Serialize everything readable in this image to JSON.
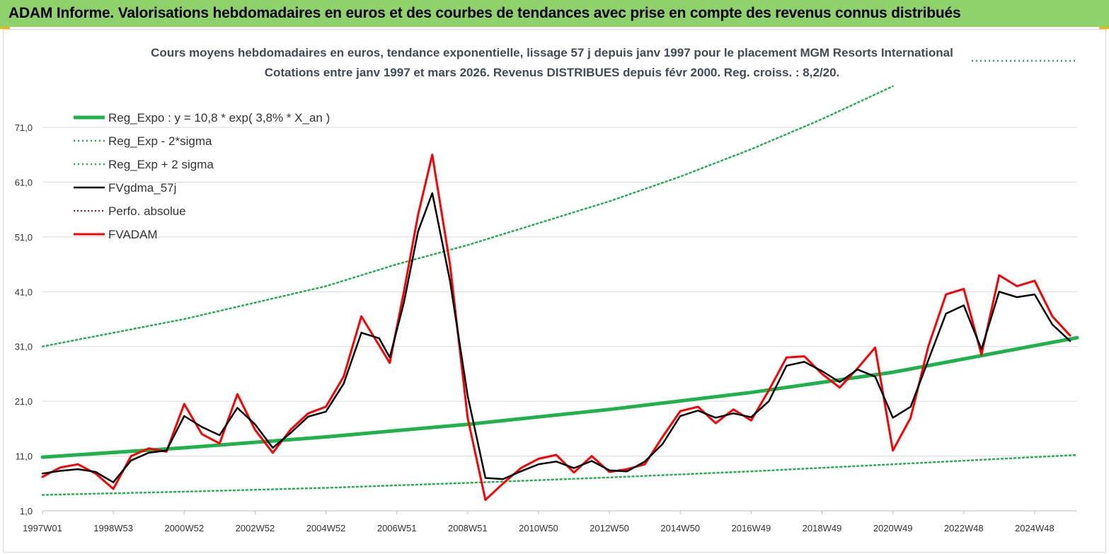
{
  "header": {
    "title": "ADAM Informe. Valorisations hebdomadaires en euros et des courbes de tendances avec prise en compte des revenus connus distribués"
  },
  "chart_data": {
    "type": "line",
    "subtitle_line1": "Cours moyens hebdomadaires en euros, tendance exponentielle, lissage 57 j depuis janv 1997  pour le placement MGM Resorts International",
    "subtitle_line2": "Cotations entre janv 1997 et mars 2026. Revenus DISTRIBUES depuis févr 2000. Reg. croiss. : 8,2/20.",
    "x_range": [
      1997.0,
      2026.2
    ],
    "ylim": [
      1,
      79
    ],
    "y_ticks": [
      "1,0",
      "11,0",
      "21,0",
      "31,0",
      "41,0",
      "51,0",
      "61,0",
      "71,0"
    ],
    "y_tick_values": [
      1,
      11,
      21,
      31,
      41,
      51,
      61,
      71
    ],
    "x_tick_labels": [
      "1997W01",
      "1998W53",
      "2000W52",
      "2002W52",
      "2004W52",
      "2006W51",
      "2008W51",
      "2010W50",
      "2012W50",
      "2014W50",
      "2016W49",
      "2018W49",
      "2020W49",
      "2022W48",
      "2024W48"
    ],
    "x_tick_values": [
      1997.0,
      1999.0,
      2001.0,
      2003.0,
      2005.0,
      2007.0,
      2009.0,
      2011.0,
      2013.0,
      2015.0,
      2017.0,
      2019.0,
      2021.0,
      2023.0,
      2025.0
    ],
    "grid": "horizontal",
    "legend_position": "top-left",
    "colors": {
      "reg_expo": "#1db34a",
      "sigma": "#1db34a",
      "smooth": "#000000",
      "perfo": "#c00000",
      "price": "#ff0000"
    },
    "series": [
      {
        "name": "Reg_Expo : y = 10,8 * exp( 3,8% *  X_an )",
        "style": "thick",
        "x": [
          1997.0,
          2001.0,
          2005.0,
          2009.0,
          2013.0,
          2017.0,
          2021.0,
          2026.2
        ],
        "values": [
          10.8,
          12.5,
          14.5,
          16.8,
          19.5,
          22.6,
          26.3,
          32.6
        ]
      },
      {
        "name": "Reg_Exp - 2*sigma",
        "style": "dotted",
        "x": [
          1997.0,
          2001.0,
          2005.0,
          2009.0,
          2013.0,
          2017.0,
          2021.0,
          2026.2
        ],
        "values": [
          3.9,
          4.5,
          5.2,
          6.1,
          7.1,
          8.2,
          9.5,
          11.2
        ]
      },
      {
        "name": "Reg_Exp + 2 sigma",
        "style": "dotted",
        "x": [
          1997.0,
          2001.0,
          2005.0,
          2007.0,
          2009.0,
          2013.0,
          2015.0,
          2017.0,
          2019.0,
          2021.0
        ],
        "values": [
          31.0,
          36.0,
          42.0,
          46.0,
          49.5,
          57.5,
          62.0,
          67.0,
          72.5,
          78.5
        ]
      },
      {
        "name": "FVgdma_57j",
        "style": "line",
        "x": [
          1997.0,
          1997.5,
          1998.0,
          1998.5,
          1999.0,
          1999.5,
          2000.0,
          2000.5,
          2001.0,
          2001.5,
          2002.0,
          2002.5,
          2003.0,
          2003.5,
          2004.0,
          2004.5,
          2005.0,
          2005.5,
          2006.0,
          2006.5,
          2006.8,
          2007.2,
          2007.6,
          2008.0,
          2008.5,
          2009.0,
          2009.5,
          2010.0,
          2010.5,
          2011.0,
          2011.5,
          2012.0,
          2012.5,
          2013.0,
          2013.5,
          2014.0,
          2014.5,
          2015.0,
          2015.5,
          2016.0,
          2016.5,
          2017.0,
          2017.5,
          2018.0,
          2018.5,
          2019.0,
          2019.5,
          2020.0,
          2020.5,
          2021.0,
          2021.5,
          2022.0,
          2022.5,
          2023.0,
          2023.5,
          2024.0,
          2024.5,
          2025.0,
          2025.5,
          2026.0
        ],
        "values": [
          7.8,
          8.3,
          8.6,
          8.1,
          6.2,
          10.2,
          11.6,
          12.0,
          18.3,
          16.3,
          14.8,
          19.8,
          16.8,
          12.5,
          15.2,
          18.2,
          19.1,
          24.2,
          33.5,
          32.5,
          29.0,
          39.0,
          52.0,
          59.0,
          43.0,
          22.0,
          7.0,
          6.8,
          8.2,
          9.5,
          10.0,
          8.8,
          10.1,
          8.4,
          8.2,
          10.0,
          13.2,
          18.3,
          19.3,
          18.0,
          18.8,
          18.1,
          21.0,
          27.5,
          28.2,
          26.5,
          24.5,
          26.8,
          25.5,
          18.0,
          20.0,
          28.5,
          37.0,
          38.5,
          30.5,
          41.0,
          40.0,
          40.5,
          35.0,
          32.0
        ]
      },
      {
        "name": "Perfo. absolue",
        "style": "dotted",
        "x": [],
        "values": []
      },
      {
        "name": "FVADAM",
        "style": "thick",
        "x": [
          1997.0,
          1997.5,
          1998.0,
          1998.5,
          1999.0,
          1999.5,
          2000.0,
          2000.5,
          2001.0,
          2001.5,
          2002.0,
          2002.5,
          2003.0,
          2003.5,
          2004.0,
          2004.5,
          2005.0,
          2005.5,
          2006.0,
          2006.5,
          2006.8,
          2007.2,
          2007.6,
          2008.0,
          2008.5,
          2009.0,
          2009.5,
          2010.0,
          2010.5,
          2011.0,
          2011.5,
          2012.0,
          2012.5,
          2013.0,
          2013.5,
          2014.0,
          2014.5,
          2015.0,
          2015.5,
          2016.0,
          2016.5,
          2017.0,
          2017.5,
          2018.0,
          2018.5,
          2019.0,
          2019.5,
          2020.0,
          2020.5,
          2021.0,
          2021.5,
          2022.0,
          2022.5,
          2023.0,
          2023.5,
          2024.0,
          2024.5,
          2025.0,
          2025.5,
          2026.0
        ],
        "values": [
          7.2,
          8.9,
          9.5,
          7.8,
          5.0,
          11.0,
          12.4,
          11.8,
          20.5,
          15.0,
          13.3,
          22.3,
          15.8,
          11.6,
          15.8,
          18.8,
          20.0,
          25.5,
          36.5,
          31.2,
          28.0,
          41.0,
          55.0,
          66.0,
          46.0,
          18.0,
          3.0,
          6.0,
          8.8,
          10.5,
          11.2,
          8.0,
          11.0,
          8.1,
          8.6,
          9.5,
          14.5,
          19.2,
          20.0,
          17.0,
          19.5,
          17.5,
          23.0,
          29.0,
          29.2,
          26.0,
          23.5,
          27.0,
          30.8,
          12.0,
          18.0,
          31.0,
          40.5,
          41.5,
          29.5,
          44.0,
          42.0,
          43.0,
          36.5,
          33.0
        ]
      }
    ]
  }
}
